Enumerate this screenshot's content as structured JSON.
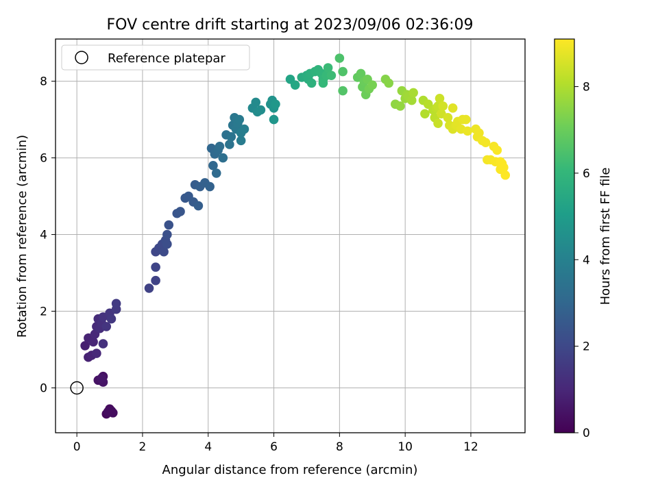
{
  "chart_data": {
    "type": "scatter",
    "title": "FOV centre drift starting at 2023/09/06 02:36:09",
    "xlabel": "Angular distance from reference (arcmin)",
    "ylabel": "Rotation from reference (arcmin)",
    "xlim": [
      -0.65,
      13.65
    ],
    "ylim": [
      -1.17,
      9.1
    ],
    "xticks": [
      0,
      2,
      4,
      6,
      8,
      10,
      12
    ],
    "yticks": [
      0,
      2,
      4,
      6,
      8
    ],
    "grid": true,
    "legend": {
      "location": "top-left",
      "entries": [
        "Reference platepar"
      ]
    },
    "colorbar": {
      "label": "Hours from first FF file",
      "colormap": "viridis",
      "min": 0,
      "max": 9.1,
      "ticks": [
        0,
        2,
        4,
        6,
        8
      ],
      "stops": [
        "#440154",
        "#482878",
        "#3e4989",
        "#31688e",
        "#26828e",
        "#1f9e89",
        "#35b779",
        "#6ece58",
        "#b5de2b",
        "#fde725"
      ]
    },
    "reference": {
      "x": 0,
      "y": 0,
      "label": "Reference platepar"
    },
    "points": [
      [
        0.9,
        -0.68,
        0.2
      ],
      [
        1.0,
        -0.55,
        0.25
      ],
      [
        1.05,
        -0.6,
        0.28
      ],
      [
        1.1,
        -0.65,
        0.3
      ],
      [
        0.95,
        -0.62,
        0.32
      ],
      [
        0.8,
        0.3,
        0.4
      ],
      [
        0.65,
        0.2,
        0.45
      ],
      [
        0.8,
        0.15,
        0.5
      ],
      [
        0.75,
        0.25,
        0.55
      ],
      [
        0.25,
        1.1,
        0.8
      ],
      [
        0.35,
        0.8,
        0.85
      ],
      [
        0.35,
        1.3,
        0.9
      ],
      [
        0.45,
        0.85,
        0.92
      ],
      [
        0.5,
        1.2,
        0.95
      ],
      [
        0.55,
        1.4,
        1.0
      ],
      [
        0.6,
        0.9,
        1.05
      ],
      [
        0.6,
        1.6,
        1.1
      ],
      [
        0.65,
        1.8,
        1.15
      ],
      [
        0.7,
        1.55,
        1.2
      ],
      [
        0.75,
        1.7,
        1.25
      ],
      [
        0.8,
        1.15,
        1.3
      ],
      [
        0.8,
        1.85,
        1.35
      ],
      [
        0.9,
        1.6,
        1.4
      ],
      [
        1.0,
        1.95,
        1.45
      ],
      [
        1.05,
        1.8,
        1.5
      ],
      [
        1.2,
        2.05,
        1.55
      ],
      [
        1.2,
        2.2,
        1.6
      ],
      [
        2.2,
        2.6,
        1.8
      ],
      [
        2.4,
        2.8,
        1.85
      ],
      [
        2.4,
        3.15,
        1.9
      ],
      [
        2.4,
        3.55,
        1.95
      ],
      [
        2.5,
        3.65,
        2.0
      ],
      [
        2.6,
        3.75,
        2.05
      ],
      [
        2.65,
        3.55,
        2.1
      ],
      [
        2.7,
        3.85,
        2.15
      ],
      [
        2.75,
        3.75,
        2.2
      ],
      [
        2.75,
        4.0,
        2.25
      ],
      [
        2.8,
        4.25,
        2.3
      ],
      [
        3.05,
        4.55,
        2.4
      ],
      [
        3.15,
        4.6,
        2.45
      ],
      [
        3.3,
        4.95,
        2.5
      ],
      [
        3.4,
        5.0,
        2.55
      ],
      [
        3.55,
        4.85,
        2.6
      ],
      [
        3.6,
        5.3,
        2.65
      ],
      [
        3.7,
        4.75,
        2.7
      ],
      [
        3.75,
        5.25,
        2.75
      ],
      [
        3.9,
        5.35,
        2.8
      ],
      [
        4.05,
        5.25,
        2.85
      ],
      [
        4.1,
        6.25,
        3.0
      ],
      [
        4.15,
        5.8,
        3.05
      ],
      [
        4.2,
        6.1,
        3.1
      ],
      [
        4.25,
        5.6,
        3.15
      ],
      [
        4.3,
        6.2,
        3.2
      ],
      [
        4.35,
        6.3,
        3.25
      ],
      [
        4.45,
        6.0,
        3.3
      ],
      [
        4.55,
        6.6,
        3.4
      ],
      [
        4.65,
        6.35,
        3.45
      ],
      [
        4.7,
        6.55,
        3.5
      ],
      [
        4.75,
        6.85,
        3.55
      ],
      [
        4.8,
        7.05,
        3.6
      ],
      [
        4.85,
        6.75,
        3.65
      ],
      [
        4.9,
        6.9,
        3.7
      ],
      [
        4.95,
        7.0,
        3.75
      ],
      [
        5.0,
        6.45,
        3.8
      ],
      [
        5.0,
        6.65,
        3.85
      ],
      [
        5.1,
        6.75,
        3.9
      ],
      [
        5.35,
        7.3,
        4.3
      ],
      [
        5.45,
        7.45,
        4.35
      ],
      [
        5.5,
        7.2,
        4.4
      ],
      [
        5.6,
        7.25,
        4.45
      ],
      [
        5.9,
        7.4,
        4.6
      ],
      [
        5.95,
        7.5,
        4.65
      ],
      [
        6.0,
        7.3,
        4.7
      ],
      [
        6.0,
        7.0,
        4.75
      ],
      [
        6.05,
        7.4,
        4.8
      ],
      [
        6.5,
        8.05,
        5.3
      ],
      [
        6.65,
        7.9,
        5.4
      ],
      [
        6.85,
        8.1,
        5.6
      ],
      [
        7.0,
        8.15,
        5.65
      ],
      [
        7.05,
        8.05,
        5.7
      ],
      [
        7.1,
        8.2,
        5.75
      ],
      [
        7.15,
        7.95,
        5.8
      ],
      [
        7.25,
        8.25,
        5.85
      ],
      [
        7.35,
        8.3,
        5.9
      ],
      [
        7.45,
        8.2,
        5.95
      ],
      [
        7.5,
        8.05,
        6.0
      ],
      [
        7.5,
        7.95,
        6.05
      ],
      [
        7.6,
        8.15,
        6.1
      ],
      [
        7.65,
        8.35,
        6.15
      ],
      [
        7.75,
        8.15,
        6.2
      ],
      [
        8.0,
        8.6,
        6.5
      ],
      [
        8.1,
        8.25,
        6.55
      ],
      [
        8.1,
        7.75,
        6.6
      ],
      [
        8.55,
        8.1,
        6.85
      ],
      [
        8.65,
        8.2,
        6.9
      ],
      [
        8.7,
        7.85,
        6.95
      ],
      [
        8.75,
        8.0,
        7.0
      ],
      [
        8.8,
        7.65,
        7.05
      ],
      [
        8.85,
        8.05,
        7.1
      ],
      [
        8.9,
        7.8,
        7.15
      ],
      [
        9.0,
        7.9,
        7.2
      ],
      [
        9.4,
        8.05,
        7.4
      ],
      [
        9.5,
        7.95,
        7.45
      ],
      [
        9.7,
        7.4,
        7.55
      ],
      [
        9.85,
        7.35,
        7.6
      ],
      [
        9.9,
        7.75,
        7.65
      ],
      [
        10.0,
        7.55,
        7.7
      ],
      [
        10.05,
        7.65,
        7.75
      ],
      [
        10.1,
        7.6,
        7.8
      ],
      [
        10.2,
        7.5,
        7.85
      ],
      [
        10.25,
        7.7,
        7.9
      ],
      [
        10.55,
        7.5,
        8.0
      ],
      [
        10.6,
        7.15,
        8.05
      ],
      [
        10.7,
        7.4,
        8.1
      ],
      [
        10.85,
        7.25,
        8.15
      ],
      [
        10.9,
        7.05,
        8.2
      ],
      [
        10.95,
        7.3,
        8.25
      ],
      [
        11.0,
        7.35,
        8.3
      ],
      [
        11.0,
        6.9,
        8.35
      ],
      [
        11.05,
        7.55,
        8.4
      ],
      [
        11.1,
        7.15,
        8.45
      ],
      [
        11.15,
        7.35,
        8.5
      ],
      [
        11.3,
        7.05,
        8.55
      ],
      [
        11.35,
        6.85,
        8.6
      ],
      [
        11.45,
        6.75,
        8.65
      ],
      [
        11.45,
        7.3,
        8.7
      ],
      [
        11.55,
        6.85,
        8.72
      ],
      [
        11.6,
        6.95,
        8.75
      ],
      [
        11.7,
        6.75,
        8.78
      ],
      [
        11.75,
        7.0,
        8.8
      ],
      [
        11.85,
        7.0,
        8.82
      ],
      [
        11.9,
        6.7,
        8.85
      ],
      [
        12.15,
        6.75,
        8.88
      ],
      [
        12.2,
        6.55,
        8.9
      ],
      [
        12.25,
        6.65,
        8.92
      ],
      [
        12.35,
        6.45,
        8.94
      ],
      [
        12.45,
        6.4,
        8.96
      ],
      [
        12.5,
        5.95,
        8.98
      ],
      [
        12.6,
        5.95,
        9.0
      ],
      [
        12.7,
        6.3,
        9.02
      ],
      [
        12.75,
        5.9,
        9.04
      ],
      [
        12.8,
        6.2,
        9.05
      ],
      [
        12.9,
        5.7,
        9.06
      ],
      [
        12.9,
        5.9,
        9.07
      ],
      [
        12.95,
        5.85,
        9.08
      ],
      [
        13.0,
        5.75,
        9.09
      ],
      [
        13.05,
        5.55,
        9.1
      ]
    ]
  }
}
